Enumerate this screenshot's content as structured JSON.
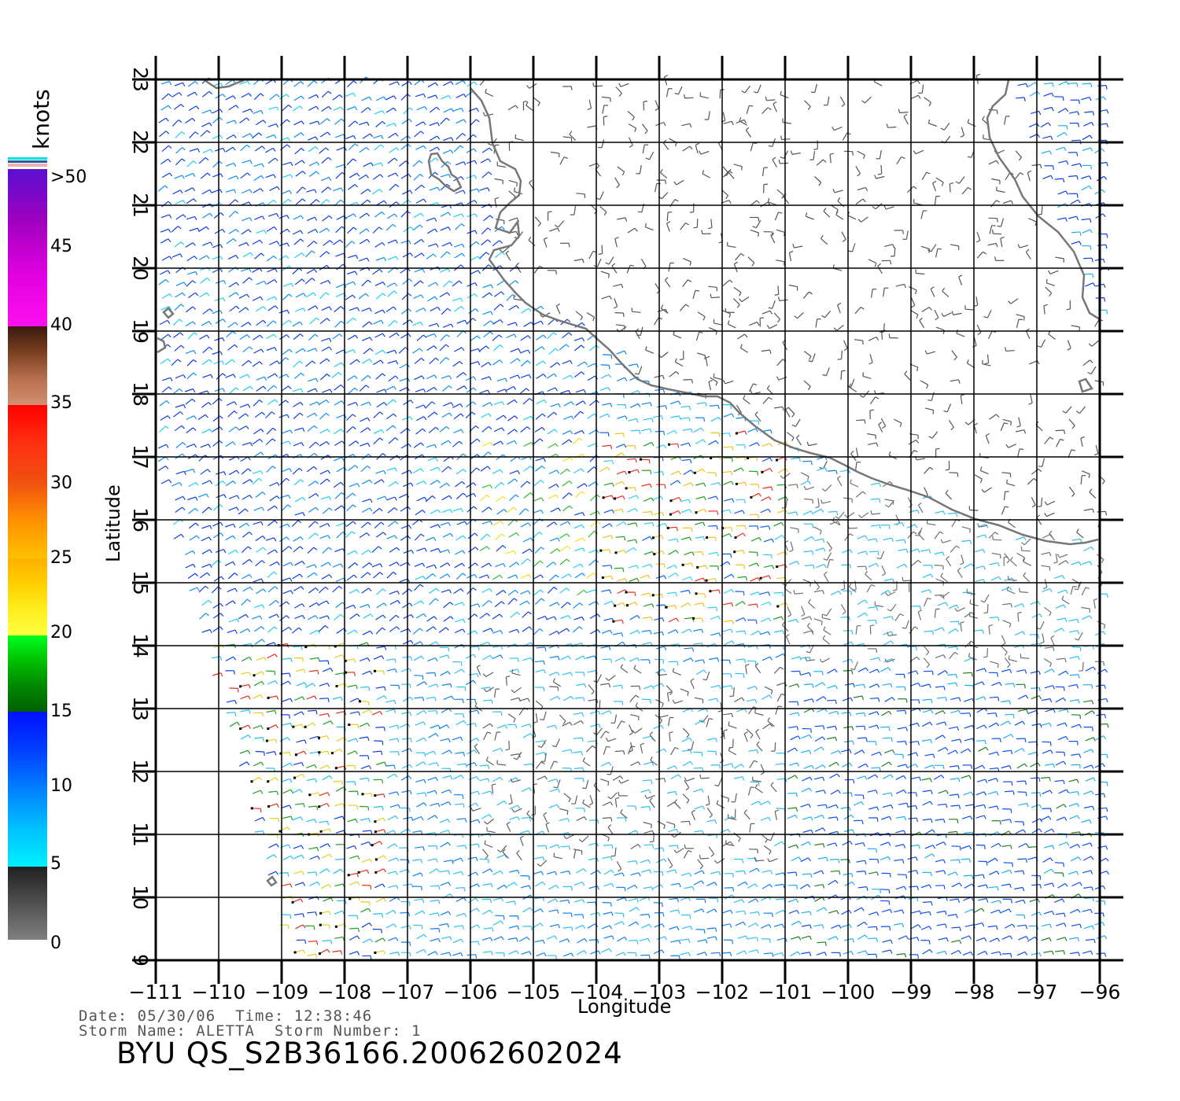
{
  "colorbar": {
    "unit_label": "knots",
    "tick_labels": [
      ">50",
      "45",
      "40",
      "35",
      "30",
      "25",
      "20",
      "15",
      "10",
      "5",
      "0"
    ]
  },
  "axes": {
    "x_label": "Longitude",
    "y_label": "Latitude",
    "lon_ticks": [
      -111,
      -110,
      -109,
      -108,
      -107,
      -106,
      -105,
      -104,
      -103,
      -102,
      -101,
      -100,
      -99,
      -98,
      -97,
      -96
    ],
    "lat_ticks": [
      9,
      10,
      11,
      12,
      13,
      14,
      15,
      16,
      17,
      18,
      19,
      20,
      21,
      22,
      23
    ],
    "lon_range": [
      -111,
      -96
    ],
    "lat_range": [
      9,
      23
    ],
    "grid": true
  },
  "footer": {
    "date_label": "Date:",
    "date_value": "05/30/06",
    "time_label": "Time:",
    "time_value": "12:38:46",
    "storm_name_label": "Storm Name:",
    "storm_name": "ALETTA",
    "storm_number_label": "Storm Number:",
    "storm_number": "1",
    "product_id": "BYU QS_S2B36166.20062602024"
  },
  "colors": {
    "coast": "#777777",
    "speed_scale": [
      "#808080",
      "#00e5ff",
      "#0040ff",
      "#008000",
      "#ffff00",
      "#ffa500",
      "#ff0000",
      "#a05a3c",
      "#ff00ff",
      "#6010c0"
    ]
  }
}
